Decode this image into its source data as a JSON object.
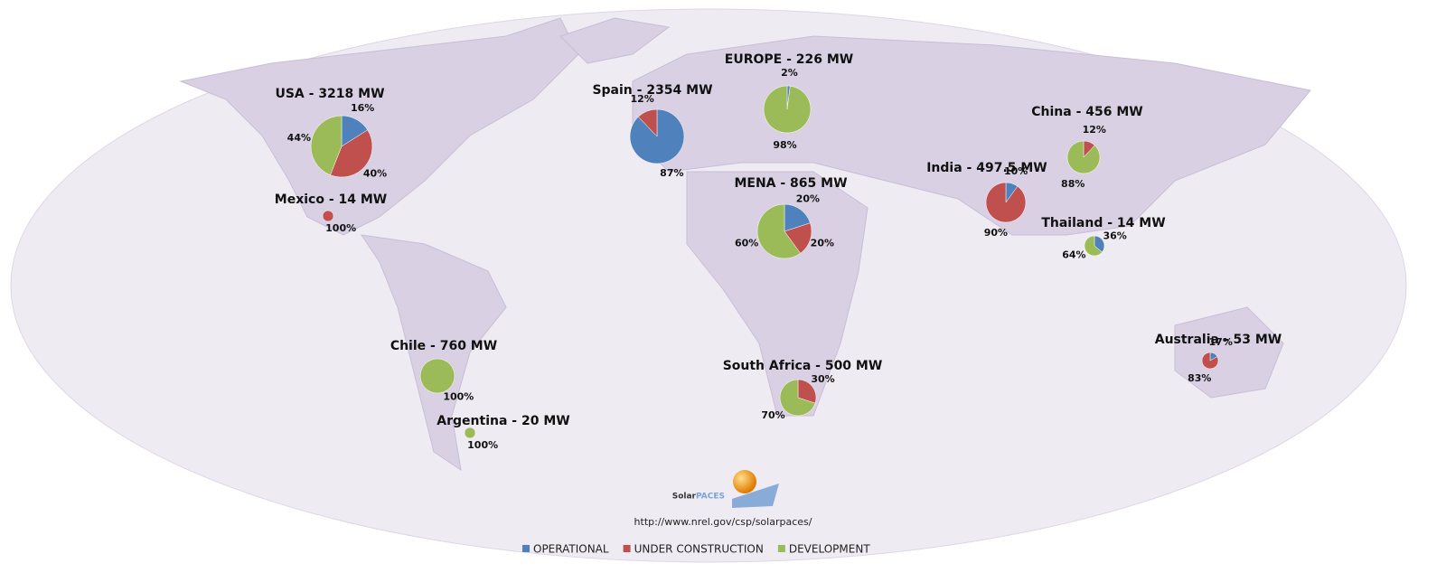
{
  "chart_data": {
    "type": "pie",
    "series": [
      {
        "name": "OPERATIONAL",
        "color": "#4f81bd"
      },
      {
        "name": "UNDER CONSTRUCTION",
        "color": "#c0504d"
      },
      {
        "name": "DEVELOPMENT",
        "color": "#9bbb59"
      }
    ],
    "regions": [
      {
        "label": "USA - 3218 MW",
        "values": [
          16,
          40,
          44
        ],
        "value_labels": [
          "16%",
          "40%",
          "44%"
        ]
      },
      {
        "label": "Spain - 2354 MW",
        "values": [
          87,
          12,
          null
        ],
        "value_labels": [
          "87%",
          "12%",
          null
        ]
      },
      {
        "label": "EUROPE - 226 MW",
        "values": [
          2,
          null,
          98
        ],
        "value_labels": [
          "2%",
          null,
          "98%"
        ]
      },
      {
        "label": "Mexico - 14 MW",
        "values": [
          null,
          100,
          null
        ],
        "value_labels": [
          null,
          "100%",
          null
        ]
      },
      {
        "label": "MENA - 865 MW",
        "values": [
          20,
          20,
          60
        ],
        "value_labels": [
          "20%",
          "20%",
          "60%"
        ]
      },
      {
        "label": "India - 497.5 MW",
        "values": [
          10,
          90,
          null
        ],
        "value_labels": [
          "10%",
          "90%",
          null
        ]
      },
      {
        "label": "China - 456 MW",
        "values": [
          null,
          12,
          88
        ],
        "value_labels": [
          null,
          "12%",
          "88%"
        ]
      },
      {
        "label": "Thailand - 14 MW",
        "values": [
          36,
          null,
          64
        ],
        "value_labels": [
          "36%",
          null,
          "64%"
        ]
      },
      {
        "label": "Chile - 760 MW",
        "values": [
          null,
          null,
          100
        ],
        "value_labels": [
          null,
          null,
          "100%"
        ]
      },
      {
        "label": "Argentina - 20 MW",
        "values": [
          null,
          null,
          100
        ],
        "value_labels": [
          null,
          null,
          "100%"
        ]
      },
      {
        "label": "South Africa - 500 MW",
        "values": [
          null,
          30,
          70
        ],
        "value_labels": [
          null,
          "30%",
          "70%"
        ]
      },
      {
        "label": "Australia - 53 MW",
        "values": [
          17,
          83,
          null
        ],
        "value_labels": [
          "17%",
          "83%",
          null
        ]
      }
    ],
    "source": "http://www.nrel.gov/csp/solarpaces/",
    "logo": [
      "Solar",
      "PACES"
    ]
  }
}
